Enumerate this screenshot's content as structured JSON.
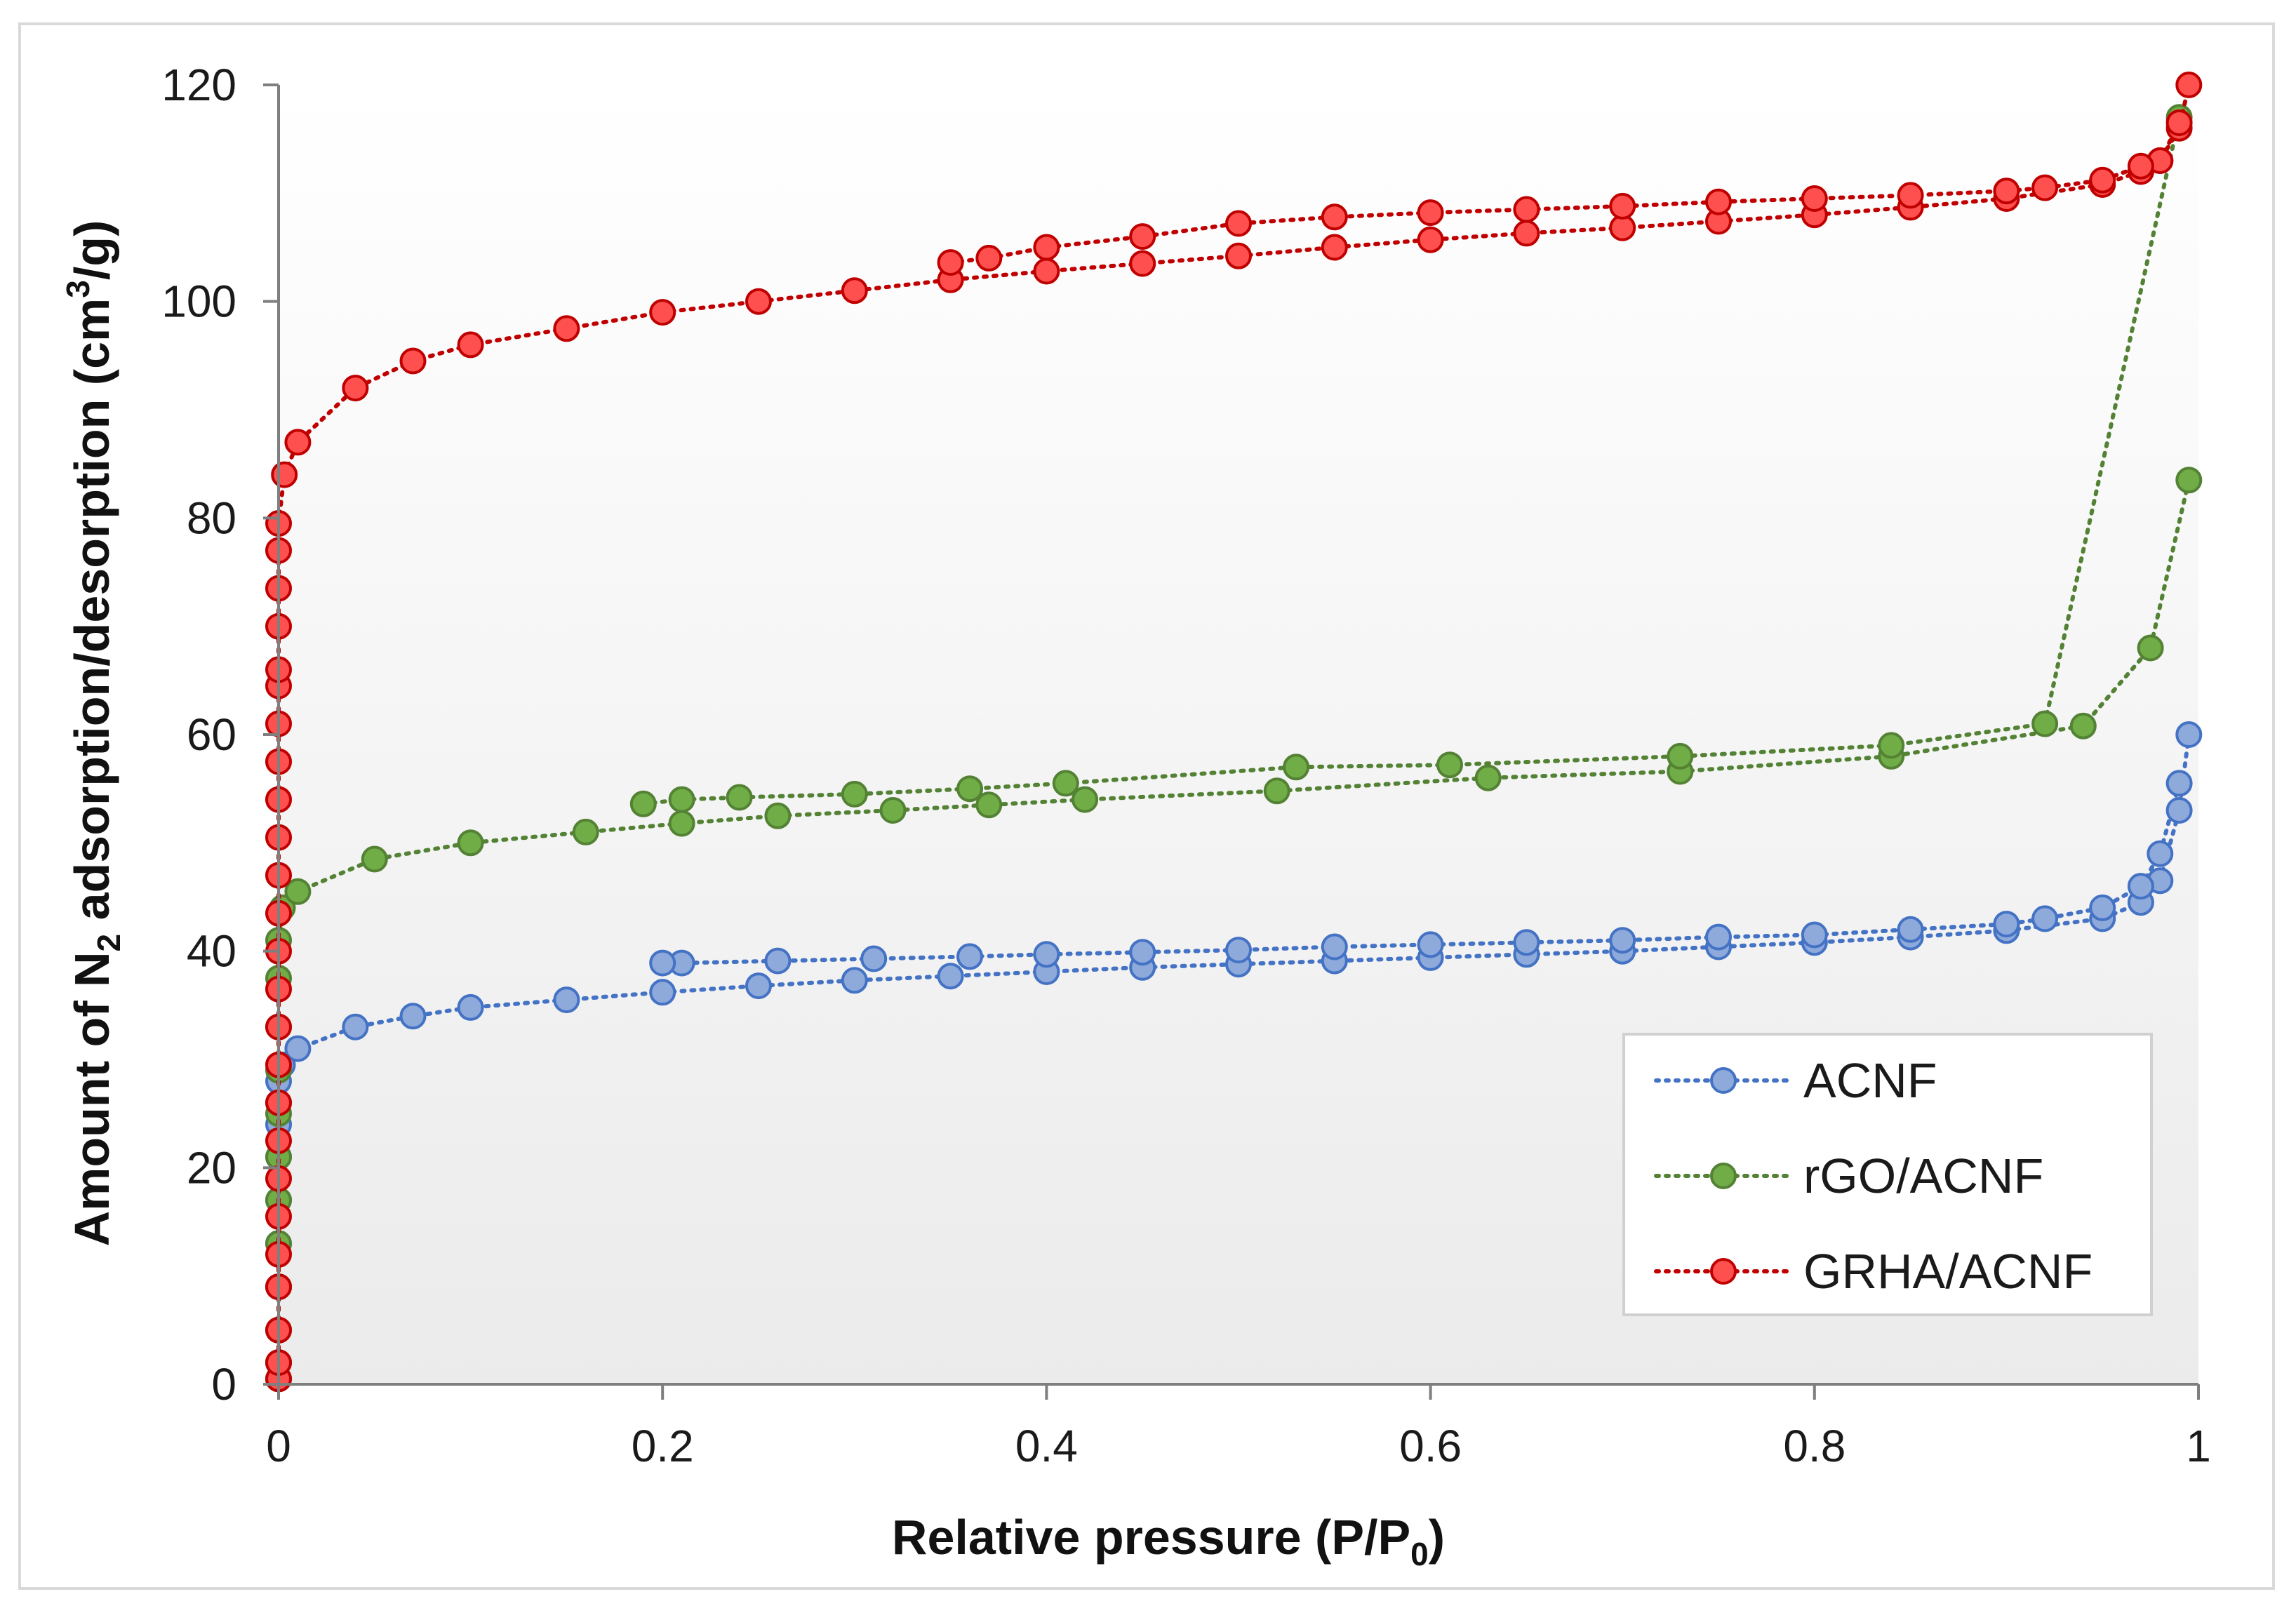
{
  "chart_data": {
    "type": "scatter",
    "xlabel": "Relative pressure (P/P",
    "xlabel_sub": "0",
    "xlabel_end": ")",
    "ylabel_pre": "Amount of N",
    "ylabel_sub": "2",
    "ylabel_mid": " adsorption/desorption (cm",
    "ylabel_sup": "3",
    "ylabel_end": "/g)",
    "xlim": [
      0,
      1
    ],
    "ylim": [
      0,
      120
    ],
    "x_ticks": [
      "0",
      "0.2",
      "0.4",
      "0.6",
      "0.8",
      "1"
    ],
    "y_ticks": [
      "0",
      "20",
      "40",
      "60",
      "80",
      "100",
      "120"
    ],
    "legend_position": "bottom-right",
    "background": "white-to-light-gray-gradient",
    "series": [
      {
        "name": "ACNF",
        "color": "#4472c4",
        "fill": "#8eaadb",
        "adsorption": [
          [
            0,
            0.5
          ],
          [
            0,
            2
          ],
          [
            0,
            5
          ],
          [
            0,
            9
          ],
          [
            0,
            13
          ],
          [
            0,
            17
          ],
          [
            0,
            21
          ],
          [
            0,
            24
          ],
          [
            0,
            26
          ],
          [
            0,
            28
          ],
          [
            0.002,
            29.5
          ],
          [
            0.01,
            31
          ],
          [
            0.04,
            33
          ],
          [
            0.07,
            34
          ],
          [
            0.1,
            34.8
          ],
          [
            0.15,
            35.5
          ],
          [
            0.2,
            36.2
          ],
          [
            0.25,
            36.8
          ],
          [
            0.3,
            37.3
          ],
          [
            0.35,
            37.7
          ],
          [
            0.4,
            38.1
          ],
          [
            0.45,
            38.5
          ],
          [
            0.5,
            38.8
          ],
          [
            0.55,
            39.1
          ],
          [
            0.6,
            39.4
          ],
          [
            0.65,
            39.7
          ],
          [
            0.7,
            40
          ],
          [
            0.75,
            40.4
          ],
          [
            0.8,
            40.8
          ],
          [
            0.85,
            41.3
          ],
          [
            0.9,
            41.9
          ],
          [
            0.95,
            43
          ],
          [
            0.97,
            44.5
          ],
          [
            0.98,
            46.5
          ],
          [
            0.99,
            53
          ],
          [
            0.995,
            60
          ]
        ],
        "desorption": [
          [
            0.99,
            55.5
          ],
          [
            0.98,
            49
          ],
          [
            0.97,
            46
          ],
          [
            0.95,
            44
          ],
          [
            0.92,
            43
          ],
          [
            0.9,
            42.5
          ],
          [
            0.85,
            42
          ],
          [
            0.8,
            41.5
          ],
          [
            0.75,
            41.3
          ],
          [
            0.7,
            41
          ],
          [
            0.65,
            40.8
          ],
          [
            0.6,
            40.6
          ],
          [
            0.55,
            40.4
          ],
          [
            0.5,
            40.1
          ],
          [
            0.45,
            39.9
          ],
          [
            0.4,
            39.7
          ],
          [
            0.36,
            39.5
          ],
          [
            0.31,
            39.3
          ],
          [
            0.26,
            39.1
          ],
          [
            0.21,
            38.9
          ],
          [
            0.2,
            38.9
          ]
        ]
      },
      {
        "name": "rGO/ACNF",
        "color": "#548235",
        "fill": "#70ad47",
        "adsorption": [
          [
            0,
            0.5
          ],
          [
            0,
            2
          ],
          [
            0,
            5
          ],
          [
            0,
            9
          ],
          [
            0,
            13
          ],
          [
            0,
            17
          ],
          [
            0,
            21
          ],
          [
            0,
            25
          ],
          [
            0,
            29
          ],
          [
            0,
            33
          ],
          [
            0,
            37.5
          ],
          [
            0,
            41
          ],
          [
            0.002,
            44
          ],
          [
            0.01,
            45.5
          ],
          [
            0.05,
            48.5
          ],
          [
            0.1,
            50
          ],
          [
            0.16,
            51
          ],
          [
            0.21,
            51.8
          ],
          [
            0.26,
            52.5
          ],
          [
            0.32,
            53
          ],
          [
            0.37,
            53.5
          ],
          [
            0.42,
            54
          ],
          [
            0.52,
            54.8
          ],
          [
            0.63,
            56
          ],
          [
            0.73,
            56.6
          ],
          [
            0.84,
            58
          ],
          [
            0.94,
            60.8
          ],
          [
            0.975,
            68
          ],
          [
            0.995,
            83.5
          ]
        ],
        "desorption": [
          [
            0.99,
            117
          ],
          [
            0.92,
            61
          ],
          [
            0.84,
            59
          ],
          [
            0.73,
            58
          ],
          [
            0.61,
            57.2
          ],
          [
            0.53,
            57
          ],
          [
            0.41,
            55.5
          ],
          [
            0.36,
            55
          ],
          [
            0.3,
            54.5
          ],
          [
            0.24,
            54.2
          ],
          [
            0.21,
            54
          ],
          [
            0.19,
            53.6
          ]
        ]
      },
      {
        "name": "GRHA/ACNF",
        "color": "#c00000",
        "fill": "#ff5050",
        "adsorption": [
          [
            0,
            0.5
          ],
          [
            0,
            2
          ],
          [
            0,
            5
          ],
          [
            0,
            9
          ],
          [
            0,
            12
          ],
          [
            0,
            15.5
          ],
          [
            0,
            19
          ],
          [
            0,
            22.5
          ],
          [
            0,
            26
          ],
          [
            0,
            29.5
          ],
          [
            0,
            33
          ],
          [
            0,
            36.5
          ],
          [
            0,
            40
          ],
          [
            0,
            43.5
          ],
          [
            0,
            47
          ],
          [
            0,
            50.5
          ],
          [
            0,
            54
          ],
          [
            0,
            57.5
          ],
          [
            0,
            61
          ],
          [
            0,
            64.5
          ],
          [
            0,
            66
          ],
          [
            0,
            70
          ],
          [
            0,
            73.5
          ],
          [
            0,
            77
          ],
          [
            0,
            79.5
          ],
          [
            0.003,
            84
          ],
          [
            0.01,
            87
          ],
          [
            0.04,
            92
          ],
          [
            0.07,
            94.5
          ],
          [
            0.1,
            96
          ],
          [
            0.15,
            97.5
          ],
          [
            0.2,
            99
          ],
          [
            0.25,
            100
          ],
          [
            0.3,
            101
          ],
          [
            0.35,
            102
          ],
          [
            0.4,
            102.8
          ],
          [
            0.45,
            103.5
          ],
          [
            0.5,
            104.2
          ],
          [
            0.55,
            105
          ],
          [
            0.6,
            105.7
          ],
          [
            0.65,
            106.3
          ],
          [
            0.7,
            106.8
          ],
          [
            0.75,
            107.4
          ],
          [
            0.8,
            108
          ],
          [
            0.85,
            108.7
          ],
          [
            0.9,
            109.5
          ],
          [
            0.95,
            110.8
          ],
          [
            0.97,
            112
          ],
          [
            0.98,
            113
          ],
          [
            0.99,
            116
          ],
          [
            0.995,
            120
          ]
        ],
        "desorption": [
          [
            0.99,
            116.5
          ],
          [
            0.98,
            113
          ],
          [
            0.97,
            112.5
          ],
          [
            0.95,
            111.2
          ],
          [
            0.92,
            110.5
          ],
          [
            0.9,
            110.2
          ],
          [
            0.85,
            109.8
          ],
          [
            0.8,
            109.5
          ],
          [
            0.75,
            109.2
          ],
          [
            0.7,
            108.8
          ],
          [
            0.65,
            108.5
          ],
          [
            0.6,
            108.2
          ],
          [
            0.55,
            107.8
          ],
          [
            0.5,
            107.2
          ],
          [
            0.45,
            106
          ],
          [
            0.4,
            105
          ],
          [
            0.37,
            104
          ],
          [
            0.35,
            103.6
          ]
        ]
      }
    ]
  }
}
